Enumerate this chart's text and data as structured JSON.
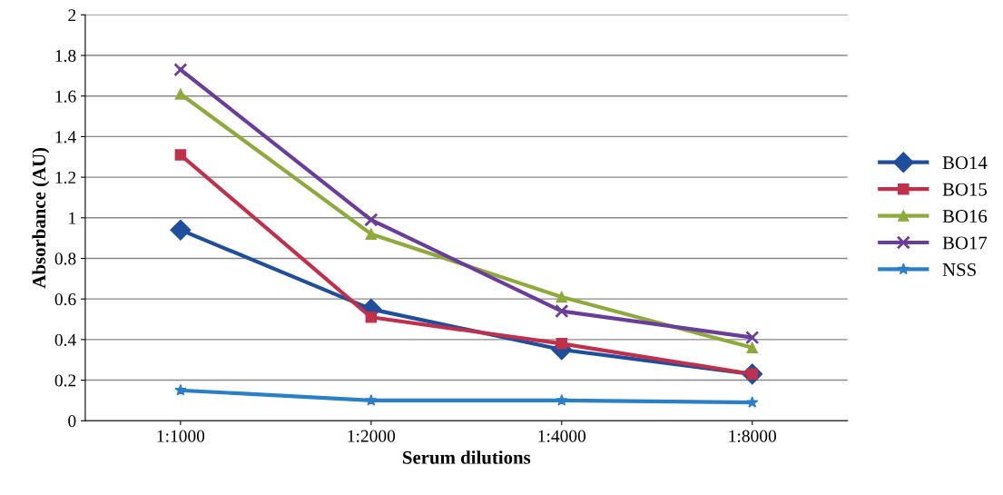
{
  "chart_data": {
    "type": "line",
    "xlabel": "Serum dilutions",
    "ylabel": "Absorbance (AU)",
    "categories": [
      "1:1000",
      "1:2000",
      "1:4000",
      "1:8000"
    ],
    "series": [
      {
        "name": "BO14",
        "color": "#1f4e9c",
        "marker": "diamond",
        "values": [
          0.94,
          0.55,
          0.35,
          0.23
        ]
      },
      {
        "name": "BO15",
        "color": "#c0304a",
        "marker": "square",
        "values": [
          1.31,
          0.51,
          0.38,
          0.23
        ]
      },
      {
        "name": "BO16",
        "color": "#8faa3c",
        "marker": "triangle",
        "values": [
          1.61,
          0.92,
          0.61,
          0.36
        ]
      },
      {
        "name": "BO17",
        "color": "#6a3d9a",
        "marker": "cross",
        "values": [
          1.73,
          0.99,
          0.54,
          0.41
        ]
      },
      {
        "name": "NSS",
        "color": "#2a7fc8",
        "marker": "star",
        "values": [
          0.15,
          0.1,
          0.1,
          0.09
        ]
      }
    ],
    "ylim": [
      0,
      2
    ],
    "yticks": [
      0,
      0.2,
      0.4,
      0.6,
      0.8,
      1,
      1.2,
      1.4,
      1.6,
      1.8,
      2
    ],
    "grid": "y",
    "legend": "right",
    "line_style": "solid"
  }
}
